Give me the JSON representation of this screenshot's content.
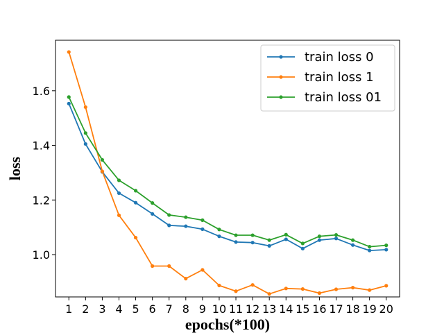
{
  "chart_data": {
    "type": "line",
    "title": "",
    "xlabel": "epochs(*100)",
    "ylabel": "loss",
    "x": [
      1,
      2,
      3,
      4,
      5,
      6,
      7,
      8,
      9,
      10,
      11,
      12,
      13,
      14,
      15,
      16,
      17,
      18,
      19,
      20
    ],
    "xlim": [
      0.2,
      20.8
    ],
    "ylim": [
      0.845,
      1.785
    ],
    "yticks": [
      1.0,
      1.2,
      1.4,
      1.6
    ],
    "ytick_labels": [
      "1.0",
      "1.2",
      "1.4",
      "1.6"
    ],
    "xtick_labels": [
      "1",
      "2",
      "3",
      "4",
      "5",
      "6",
      "7",
      "8",
      "9",
      "10",
      "11",
      "12",
      "13",
      "14",
      "15",
      "16",
      "17",
      "18",
      "19",
      "20"
    ],
    "grid": false,
    "legend_position": "top-right",
    "series": [
      {
        "name": "train loss 0",
        "color": "#1f77b4",
        "values": [
          1.553,
          1.405,
          1.303,
          1.225,
          1.19,
          1.149,
          1.107,
          1.104,
          1.093,
          1.067,
          1.046,
          1.044,
          1.032,
          1.056,
          1.022,
          1.053,
          1.059,
          1.035,
          1.015,
          1.018
        ]
      },
      {
        "name": "train loss 1",
        "color": "#ff7f0e",
        "values": [
          1.742,
          1.54,
          1.305,
          1.144,
          1.062,
          0.958,
          0.958,
          0.912,
          0.944,
          0.887,
          0.866,
          0.889,
          0.856,
          0.876,
          0.874,
          0.859,
          0.873,
          0.879,
          0.87,
          0.886
        ]
      },
      {
        "name": "train loss 01",
        "color": "#2ca02c",
        "values": [
          1.577,
          1.445,
          1.347,
          1.272,
          1.234,
          1.189,
          1.145,
          1.137,
          1.126,
          1.092,
          1.071,
          1.071,
          1.053,
          1.073,
          1.041,
          1.067,
          1.072,
          1.053,
          1.029,
          1.034
        ]
      }
    ]
  }
}
